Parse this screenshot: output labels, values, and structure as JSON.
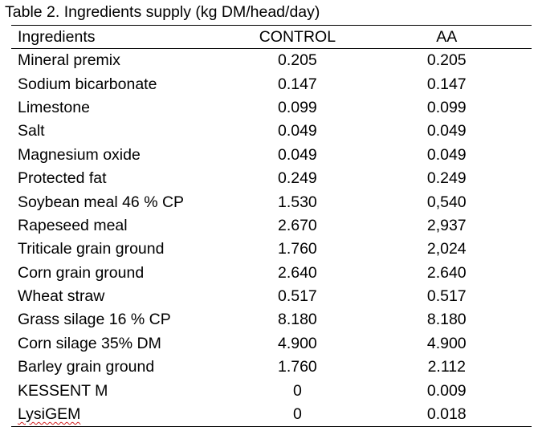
{
  "caption": "Table 2. Ingredients supply (kg DM/head/day)",
  "columns": [
    "Ingredients",
    "CONTROL",
    "AA"
  ],
  "rows": [
    [
      "Mineral premix",
      "0.205",
      "0.205"
    ],
    [
      "Sodium bicarbonate",
      "0.147",
      "0.147"
    ],
    [
      "Limestone",
      "0.099",
      "0.099"
    ],
    [
      "Salt",
      "0.049",
      "0.049"
    ],
    [
      "Magnesium oxide",
      "0.049",
      "0.049"
    ],
    [
      "Protected fat",
      "0.249",
      "0.249"
    ],
    [
      "Soybean meal 46 % CP",
      "1.530",
      "0,540"
    ],
    [
      "Rapeseed meal",
      "2.670",
      "2,937"
    ],
    [
      "Triticale grain ground",
      "1.760",
      "2,024"
    ],
    [
      "Corn grain ground",
      "2.640",
      "2.640"
    ],
    [
      "Wheat straw",
      "0.517",
      "0.517"
    ],
    [
      "Grass silage 16 % CP",
      "8.180",
      "8.180"
    ],
    [
      "Corn silage 35% DM",
      "4.900",
      "4.900"
    ],
    [
      "Barley grain ground",
      "1.760",
      "2.112"
    ],
    [
      "KESSENT M",
      "0",
      "0.009"
    ],
    [
      "LysiGEM",
      "0",
      "0.018"
    ]
  ],
  "colors": {
    "text": "#000000",
    "spellcheck_underline": "#d21f1f"
  }
}
